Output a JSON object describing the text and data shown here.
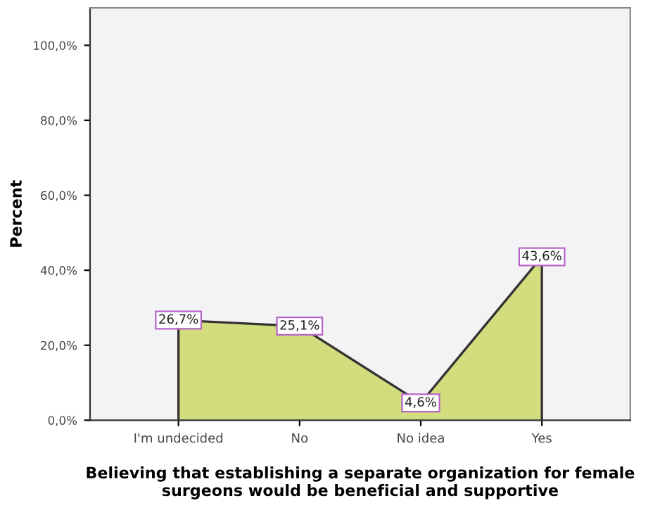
{
  "chart_data": {
    "type": "area",
    "xlabel": "Believing that establishing a separate organization for female surgeons would be beneficial and supportive",
    "ylabel": "Percent",
    "categories": [
      "I'm undecided",
      "No",
      "No idea",
      "Yes"
    ],
    "series": [
      {
        "color": "#d3dd7e",
        "values": [
          26.7,
          25.1,
          4.6,
          43.6
        ],
        "value_labels": [
          "26,7%",
          "25,1%",
          "4,6%",
          "43,6%"
        ]
      }
    ],
    "ylim": [
      0,
      110
    ],
    "yticks": [
      {
        "value": 0,
        "label": "0,0%"
      },
      {
        "value": 20,
        "label": "20,0%"
      },
      {
        "value": 40,
        "label": "40,0%"
      },
      {
        "value": 60,
        "label": "60,0%"
      },
      {
        "value": 80,
        "label": "80,0%"
      },
      {
        "value": 100,
        "label": "100,0%"
      }
    ],
    "grid": false,
    "legend": false
  }
}
